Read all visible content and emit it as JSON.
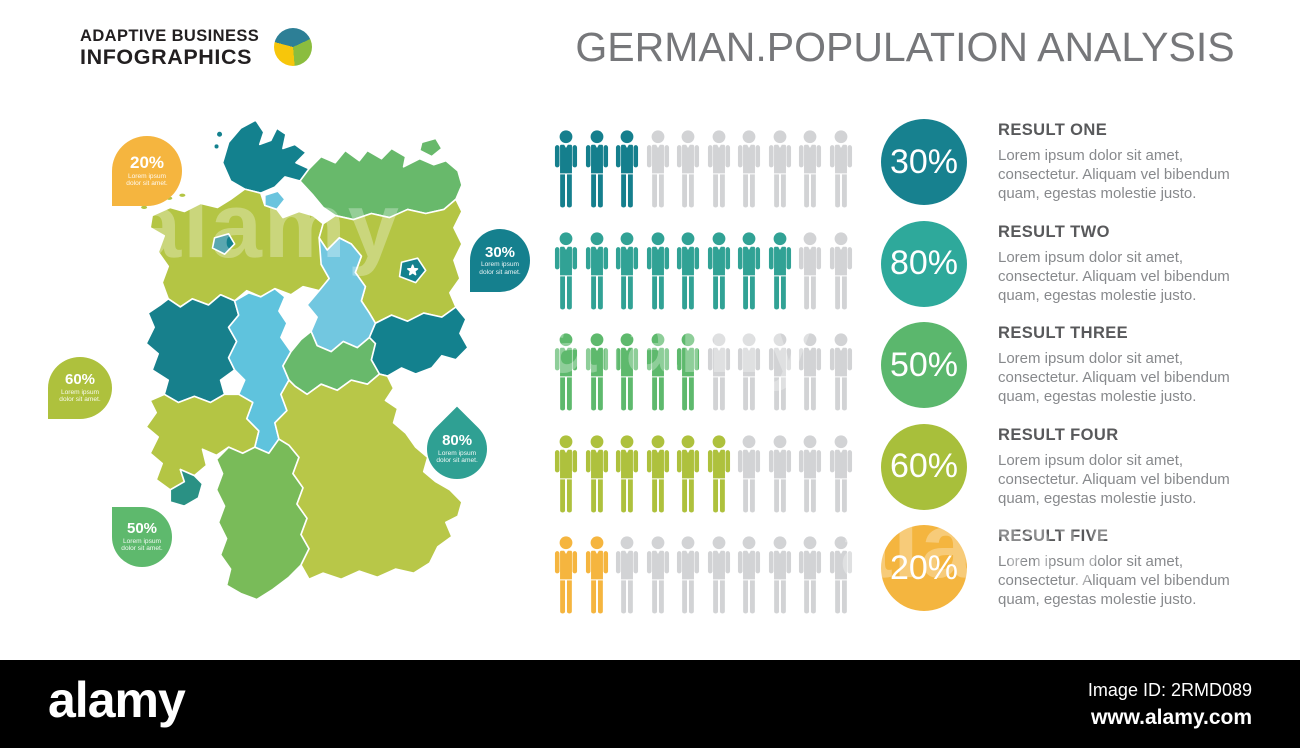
{
  "logo": {
    "line1": "ADAPTIVE BUSINESS",
    "line2": "INFOGRAPHICS"
  },
  "title": "GERMAN.POPULATION ANALYSIS",
  "map": {
    "country": "Germany",
    "region_colors": {
      "schleswig_holstein": "#13818e",
      "mecklenburg_vorpommern": "#68b96b",
      "hamburg": "#6ac4de",
      "bremen": "#13818e",
      "lower_saxony": "#b4c544",
      "brandenburg": "#b4c544",
      "berlin": "#13818e",
      "saxony_anhalt": "#72c7e0",
      "north_rhine_westphalia": "#17808c",
      "hesse": "#5fc3dd",
      "thuringia": "#68b96b",
      "saxony": "#13818e",
      "rhineland_palatinate": "#b4c544",
      "saarland": "#2a9184",
      "baden_wurttemberg": "#79bb59",
      "bavaria": "#b8c748"
    },
    "callouts": [
      {
        "pct": "20%",
        "text": "Lorem ipsum dolor sit amet.",
        "color": "#f5b53f"
      },
      {
        "pct": "30%",
        "text": "Lorem ipsum dolor sit amet.",
        "color": "#15808e"
      },
      {
        "pct": "60%",
        "text": "Lorem ipsum dolor sit amet.",
        "color": "#aec13d"
      },
      {
        "pct": "80%",
        "text": "Lorem ipsum dolor sit amet.",
        "color": "#2fa093"
      },
      {
        "pct": "50%",
        "text": "Lorem ipsum dolor sit amet.",
        "color": "#5eb96d"
      }
    ]
  },
  "chart_data": {
    "type": "bar",
    "subtype": "pictograph",
    "title": "GERMAN.POPULATION ANALYSIS",
    "categories": [
      "Result One",
      "Result Two",
      "Result Three",
      "Result Four",
      "Result Five"
    ],
    "values": [
      30,
      80,
      50,
      60,
      20
    ],
    "unit": "%",
    "icons_per_row": 10,
    "icon": "person",
    "colors": [
      "#157f8d",
      "#31a295",
      "#5eb96d",
      "#aec13d",
      "#f5b53f"
    ],
    "inactive_color": "#d2d3d5"
  },
  "results": [
    {
      "heading": "RESULT ONE",
      "pct": "30%",
      "color": "#17818f",
      "body": "Lorem ipsum dolor sit amet, consectetur. Aliquam vel bibendum quam, egestas molestie justo."
    },
    {
      "heading": "RESULT TWO",
      "pct": "80%",
      "color": "#2ea99b",
      "body": "Lorem ipsum dolor sit amet, consectetur. Aliquam vel bibendum quam, egestas molestie justo."
    },
    {
      "heading": "RESULT THREE",
      "pct": "50%",
      "color": "#5bb76d",
      "body": "Lorem ipsum dolor sit amet, consectetur. Aliquam vel bibendum quam, egestas molestie justo."
    },
    {
      "heading": "RESULT FOUR",
      "pct": "60%",
      "color": "#a8bf3b",
      "body": "Lorem ipsum dolor sit amet, consectetur. Aliquam vel bibendum quam, egestas molestie justo."
    },
    {
      "heading": "RESULT FIVE",
      "pct": "20%",
      "color": "#f4b53f",
      "body": "Lorem ipsum dolor sit amet, consectetur. Aliquam vel bibendum quam, egestas molestie justo."
    }
  ],
  "watermark_text": "alamy",
  "footer": {
    "brand": "alamy",
    "image_id": "Image ID: 2RMD089",
    "url": "www.alamy.com"
  }
}
